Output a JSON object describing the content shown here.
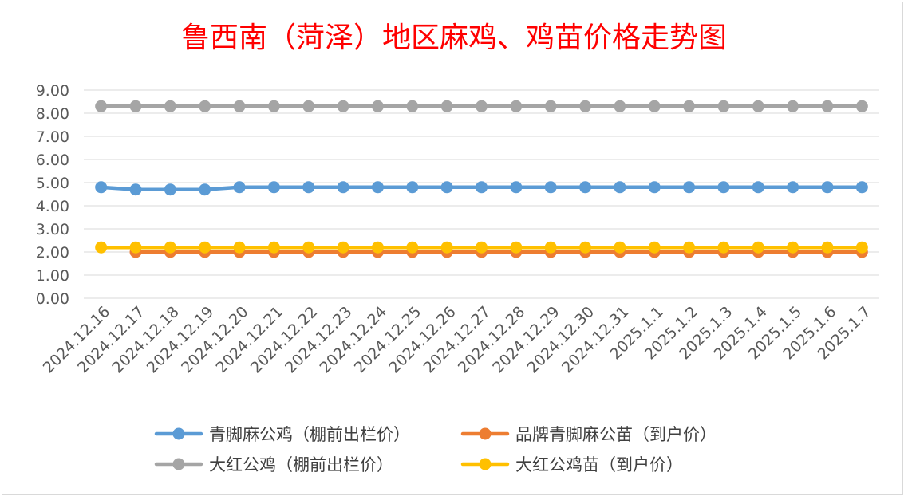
{
  "chart_data": {
    "type": "line",
    "title": "鲁西南（菏泽）地区麻鸡、鸡苗价格走势图",
    "xlabel": "",
    "ylabel": "",
    "ylim": [
      0,
      9
    ],
    "ytick_labels": [
      "0.00",
      "1.00",
      "2.00",
      "3.00",
      "4.00",
      "5.00",
      "6.00",
      "7.00",
      "8.00",
      "9.00"
    ],
    "categories": [
      "2024.12.16",
      "2024.12.17",
      "2024.12.18",
      "2024.12.19",
      "2024.12.20",
      "2024.12.21",
      "2024.12.22",
      "2024.12.23",
      "2024.12.24",
      "2024.12.25",
      "2024.12.26",
      "2024.12.27",
      "2024.12.28",
      "2024.12.29",
      "2024.12.30",
      "2024.12.31",
      "2025.1.1",
      "2025.1.2",
      "2025.1.3",
      "2025.1.4",
      "2025.1.5",
      "2025.1.6",
      "2025.1.7"
    ],
    "grid": true,
    "legend_position": "bottom",
    "series": [
      {
        "name": "青脚麻公鸡（棚前出栏价）",
        "color": "#5b9bd5",
        "values": [
          4.8,
          4.7,
          4.7,
          4.7,
          4.8,
          4.8,
          4.8,
          4.8,
          4.8,
          4.8,
          4.8,
          4.8,
          4.8,
          4.8,
          4.8,
          4.8,
          4.8,
          4.8,
          4.8,
          4.8,
          4.8,
          4.8,
          4.8
        ]
      },
      {
        "name": "品牌青脚麻公苗（到户价）",
        "color": "#ed7d31",
        "values": [
          null,
          2.0,
          2.0,
          2.0,
          2.0,
          2.0,
          2.0,
          2.0,
          2.0,
          2.0,
          2.0,
          2.0,
          2.0,
          2.0,
          2.0,
          2.0,
          2.0,
          2.0,
          2.0,
          2.0,
          2.0,
          2.0,
          2.0
        ]
      },
      {
        "name": "大红公鸡（棚前出栏价）",
        "color": "#a5a5a5",
        "values": [
          8.3,
          8.3,
          8.3,
          8.3,
          8.3,
          8.3,
          8.3,
          8.3,
          8.3,
          8.3,
          8.3,
          8.3,
          8.3,
          8.3,
          8.3,
          8.3,
          8.3,
          8.3,
          8.3,
          8.3,
          8.3,
          8.3,
          8.3
        ]
      },
      {
        "name": "大红公鸡苗（到户价）",
        "color": "#ffc000",
        "values": [
          2.2,
          2.2,
          2.2,
          2.2,
          2.2,
          2.2,
          2.2,
          2.2,
          2.2,
          2.2,
          2.2,
          2.2,
          2.2,
          2.2,
          2.2,
          2.2,
          2.2,
          2.2,
          2.2,
          2.2,
          2.2,
          2.2,
          2.2
        ]
      }
    ],
    "draw_order": [
      0,
      2,
      1,
      3
    ]
  }
}
